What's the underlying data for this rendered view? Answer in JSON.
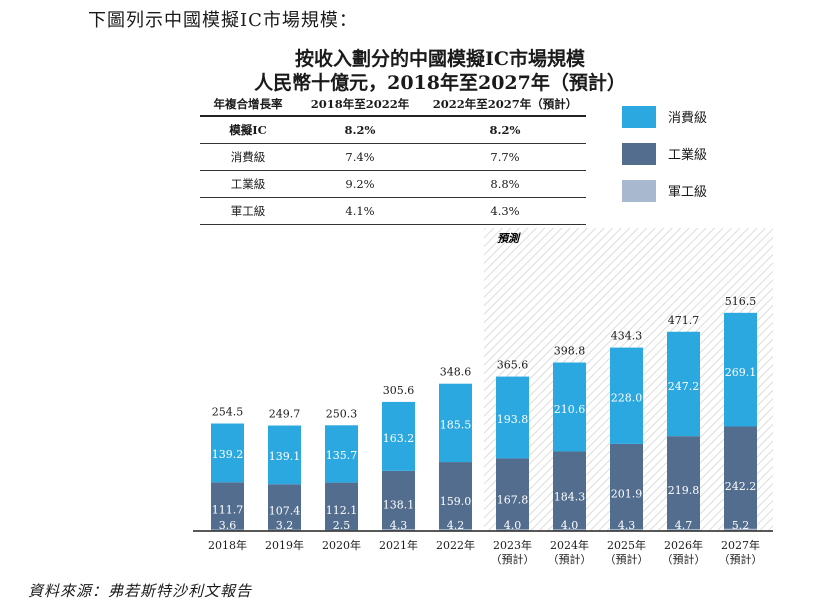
{
  "intro_text": "下圖列示中國模擬IC市場規模：",
  "chart_data": {
    "type": "bar",
    "title": "按收入劃分的中國模擬IC市場規模",
    "subtitle": "人民幣十億元，2018年至2027年（預計）",
    "categories": [
      [
        "2018年"
      ],
      [
        "2019年"
      ],
      [
        "2020年"
      ],
      [
        "2021年"
      ],
      [
        "2022年"
      ],
      [
        "2023年",
        "（預計）"
      ],
      [
        "2024年",
        "（預計）"
      ],
      [
        "2025年",
        "（預計）"
      ],
      [
        "2026年",
        "（預計）"
      ],
      [
        "2027年",
        "（預計）"
      ]
    ],
    "series": [
      {
        "name": "軍工級",
        "color": "#a7b8cf",
        "values": [
          3.6,
          3.2,
          2.5,
          4.3,
          4.2,
          4.0,
          4.0,
          4.3,
          4.7,
          5.2
        ]
      },
      {
        "name": "工業級",
        "color": "#536d8f",
        "values": [
          111.7,
          107.4,
          112.1,
          138.1,
          159.0,
          167.8,
          184.3,
          201.9,
          219.8,
          242.2
        ]
      },
      {
        "name": "消費級",
        "color": "#2ca8e0",
        "values": [
          139.2,
          139.1,
          135.7,
          163.2,
          185.5,
          193.8,
          210.6,
          228.0,
          247.2,
          269.1
        ]
      }
    ],
    "totals": [
      "254.5",
      "249.7",
      "250.3",
      "305.6",
      "348.6",
      "365.6",
      "398.8",
      "434.3",
      "471.7",
      "516.5"
    ],
    "series_labels": [
      [
        "3.6",
        "3.2",
        "2.5",
        "4.3",
        "4.2",
        "4.0",
        "4.0",
        "4.3",
        "4.7",
        "5.2"
      ],
      [
        "111.7",
        "107.4",
        "112.1",
        "138.1",
        "159.0",
        "167.8",
        "184.3",
        "201.9",
        "219.8",
        "242.2"
      ],
      [
        "139.2",
        "139.1",
        "135.7",
        "163.2",
        "185.5",
        "193.8",
        "210.6",
        "228.0",
        "247.2",
        "269.1"
      ]
    ],
    "forecast_label": "預測",
    "forecast_start_index": 5,
    "ylim": [
      0,
      520
    ]
  },
  "cagr_table": {
    "headers": [
      "年複合增長率",
      "2018年至2022年",
      "2022年至2027年（預計）"
    ],
    "rows": [
      [
        "模擬IC",
        "8.2%",
        "8.2%"
      ],
      [
        "消費級",
        "7.4%",
        "7.7%"
      ],
      [
        "工業級",
        "9.2%",
        "8.8%"
      ],
      [
        "軍工級",
        "4.1%",
        "4.3%"
      ]
    ]
  },
  "legend": [
    {
      "label": "消費級",
      "color": "#2ca8e0"
    },
    {
      "label": "工業級",
      "color": "#536d8f"
    },
    {
      "label": "軍工級",
      "color": "#a7b8cf"
    }
  ],
  "source": "資料來源：弗若斯特沙利文報告"
}
